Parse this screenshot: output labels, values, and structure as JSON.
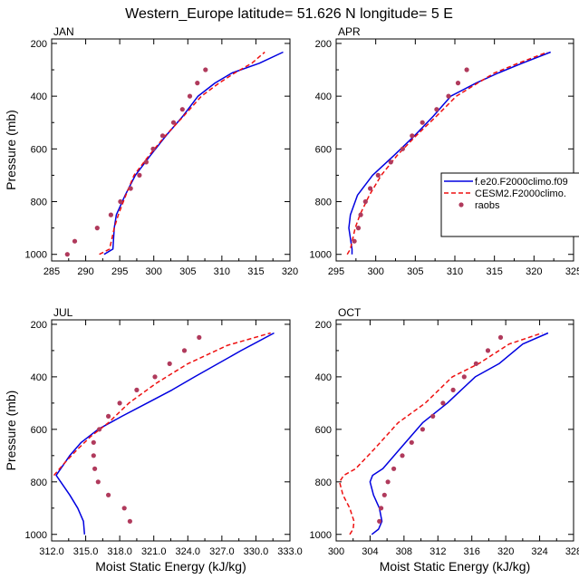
{
  "figure": {
    "title": "Western_Europe  latitude= 51.626 N longitude= 5 E"
  },
  "legend": {
    "entries": [
      {
        "label": "f.e20.F2000climo.f09",
        "color": "#0000e0",
        "style": "solid",
        "marker": false
      },
      {
        "label": "CESM2.F2000climo.",
        "color": "#ee1111",
        "style": "dashed",
        "marker": false
      },
      {
        "label": "raobs",
        "color": "#b03a5c",
        "style": "none",
        "marker": true
      }
    ]
  },
  "chart_data": [
    {
      "type": "line",
      "panel": "JAN",
      "xlabel": "",
      "ylabel": "Pressure (mb)",
      "xlim": [
        285,
        320
      ],
      "ylim": [
        1000,
        200
      ],
      "xticks": [
        "285",
        "290",
        "295",
        "300",
        "305",
        "310",
        "315",
        "320"
      ],
      "yticks": [
        "200",
        "400",
        "600",
        "800",
        "1000"
      ],
      "series": [
        {
          "name": "f.e20.F2000climo.f09",
          "x": [
            292.7,
            294,
            294.2,
            294.5,
            295.8,
            297.3,
            299.5,
            301.8,
            304.3,
            306.5,
            309,
            311.5,
            315.5,
            319
          ],
          "y": [
            1000,
            980,
            900,
            850,
            775,
            700,
            625,
            550,
            475,
            400,
            350,
            312,
            275,
            233
          ]
        },
        {
          "name": "CESM2.F2000climo.",
          "x": [
            292,
            293.5,
            294.2,
            294.8,
            295.9,
            297.1,
            299.3,
            301.7,
            304.4,
            307,
            309.6,
            311.9,
            314.4,
            316.3
          ],
          "y": [
            1000,
            980,
            900,
            850,
            775,
            700,
            625,
            550,
            475,
            400,
            350,
            312,
            275,
            233
          ]
        },
        {
          "name": "raobs",
          "x": [
            287.3,
            288.4,
            291.7,
            293.7,
            295.1,
            296.6,
            297.9,
            298.9,
            299.9,
            301.3,
            302.9,
            304.2,
            305.3,
            306.4,
            307.6
          ],
          "y": [
            1000,
            950,
            900,
            850,
            800,
            750,
            700,
            650,
            600,
            550,
            500,
            450,
            400,
            350,
            300
          ]
        }
      ]
    },
    {
      "type": "line",
      "panel": "APR",
      "xlabel": "",
      "ylabel": "",
      "xlim": [
        295,
        325
      ],
      "ylim": [
        1000,
        200
      ],
      "xticks": [
        "295",
        "300",
        "305",
        "310",
        "315",
        "320",
        "325"
      ],
      "yticks": [
        "200",
        "400",
        "600",
        "800",
        "1000"
      ],
      "series": [
        {
          "name": "f.e20.F2000climo.f09",
          "x": [
            297,
            297,
            296.6,
            296.8,
            297.7,
            299.6,
            302.3,
            304.9,
            307.3,
            309.5,
            312.7,
            315.5,
            318.5,
            322.1
          ],
          "y": [
            1000,
            980,
            900,
            850,
            775,
            700,
            625,
            550,
            475,
            400,
            350,
            312,
            275,
            233
          ]
        },
        {
          "name": "CESM2.F2000climo.",
          "x": [
            296.4,
            296.8,
            297.4,
            298,
            299.2,
            300.7,
            302.7,
            305.1,
            307.7,
            310.2,
            312.9,
            315,
            318,
            321.7
          ],
          "y": [
            1000,
            980,
            900,
            850,
            775,
            700,
            625,
            550,
            475,
            400,
            350,
            312,
            275,
            233
          ]
        },
        {
          "name": "raobs",
          "x": [
            297.3,
            297.8,
            298.1,
            298.7,
            299.3,
            300.3,
            301.9,
            303.4,
            304.6,
            305.9,
            307.7,
            309.2,
            310.4,
            311.5
          ],
          "y": [
            950,
            900,
            850,
            800,
            750,
            700,
            650,
            600,
            550,
            500,
            450,
            400,
            350,
            300
          ]
        }
      ]
    },
    {
      "type": "line",
      "panel": "JUL",
      "xlabel": "Moist Static Energy (kJ/kg)",
      "ylabel": "Pressure (mb)",
      "xlim": [
        312,
        333
      ],
      "ylim": [
        1000,
        200
      ],
      "xticks": [
        "312.0",
        "315.0",
        "318.0",
        "321.0",
        "324.0",
        "327.0",
        "330.0",
        "333.0"
      ],
      "yticks": [
        "200",
        "400",
        "600",
        "800",
        "1000"
      ],
      "series": [
        {
          "name": "f.e20.F2000climo.f09",
          "x": [
            314.9,
            314.8,
            314.3,
            313.6,
            312.8,
            312.4,
            312.8,
            313.6,
            314.6,
            316.1,
            318.2,
            320.4,
            322.6,
            324.6,
            328.7,
            331.6
          ],
          "y": [
            1000,
            950,
            900,
            850,
            800,
            775,
            750,
            700,
            650,
            600,
            550,
            500,
            450,
            400,
            300,
            233
          ]
        },
        {
          "name": "CESM2.F2000climo.",
          "x": [
            312.2,
            313.2,
            314.3,
            315.5,
            317,
            318.8,
            321.2,
            324,
            327.5,
            331.3
          ],
          "y": [
            775,
            725,
            675,
            625,
            575,
            500,
            425,
            350,
            280,
            233
          ]
        },
        {
          "name": "raobs",
          "x": [
            318.9,
            318.4,
            317,
            316.1,
            315.8,
            315.7,
            315.7,
            316.2,
            317,
            318,
            319.5,
            321.1,
            322.4,
            323.7,
            325
          ],
          "y": [
            950,
            900,
            850,
            800,
            750,
            700,
            650,
            600,
            550,
            500,
            450,
            400,
            350,
            300,
            250
          ]
        }
      ]
    },
    {
      "type": "line",
      "panel": "OCT",
      "xlabel": "Moist Static Energy (kJ/kg)",
      "ylabel": "",
      "xlim": [
        300,
        328
      ],
      "ylim": [
        1000,
        200
      ],
      "xticks": [
        "300",
        "304",
        "308",
        "312",
        "316",
        "320",
        "324",
        "328"
      ],
      "yticks": [
        "200",
        "400",
        "600",
        "800",
        "1000"
      ],
      "series": [
        {
          "name": "f.e20.F2000climo.f09",
          "x": [
            304.2,
            305,
            305.4,
            305.1,
            304.4,
            304,
            304.3,
            305.5,
            307.5,
            310.2,
            313.1,
            316.4,
            319.2,
            322,
            325
          ],
          "y": [
            1000,
            980,
            950,
            900,
            850,
            800,
            775,
            750,
            675,
            575,
            500,
            400,
            350,
            275,
            233
          ]
        },
        {
          "name": "CESM2.F2000climo.",
          "x": [
            301.6,
            302,
            302.1,
            301.6,
            300.8,
            300.4,
            300.9,
            302.3,
            304.5,
            307.3,
            310.5,
            313.7,
            316.8,
            320.4,
            324.3
          ],
          "y": [
            1000,
            980,
            950,
            900,
            850,
            800,
            775,
            750,
            675,
            575,
            500,
            400,
            350,
            275,
            233
          ]
        },
        {
          "name": "raobs",
          "x": [
            305.1,
            305.3,
            305.7,
            306.1,
            306.8,
            307.8,
            308.9,
            310.2,
            311.4,
            312.6,
            313.8,
            315.1,
            316.5,
            317.9,
            319.4
          ],
          "y": [
            950,
            900,
            850,
            800,
            750,
            700,
            650,
            600,
            550,
            500,
            450,
            400,
            350,
            300,
            250
          ]
        }
      ]
    }
  ]
}
